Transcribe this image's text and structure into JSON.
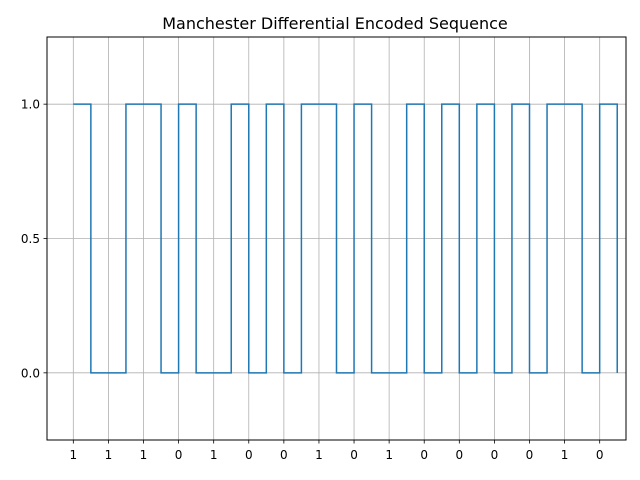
{
  "chart_data": {
    "type": "line",
    "title": "Manchester Differential Encoded Sequence",
    "xlabel": "",
    "ylabel": "",
    "bits": [
      "1",
      "1",
      "1",
      "0",
      "1",
      "0",
      "0",
      "1",
      "0",
      "1",
      "0",
      "0",
      "0",
      "0",
      "1",
      "0"
    ],
    "yticks": [
      0.0,
      0.5,
      1.0
    ],
    "ytick_labels": [
      "0.0",
      "0.5",
      "1.0"
    ],
    "ylim": [
      -0.25,
      1.25
    ],
    "xlim": [
      -0.75,
      15.75
    ],
    "grid": true,
    "series": [
      {
        "color": "#1f77b4",
        "x": [
          0,
          0.5,
          0.5,
          1,
          1,
          1.5,
          1.5,
          2,
          2,
          2.5,
          2.5,
          3,
          3,
          3.5,
          3.5,
          4,
          4,
          4.5,
          4.5,
          5,
          5,
          5.5,
          5.5,
          6,
          6,
          6.5,
          6.5,
          7,
          7,
          7.5,
          7.5,
          8,
          8,
          8.5,
          8.5,
          9,
          9,
          9.5,
          9.5,
          10,
          10,
          10.5,
          10.5,
          11,
          11,
          11.5,
          11.5,
          12,
          12,
          12.5,
          12.5,
          13,
          13,
          13.5,
          13.5,
          14,
          14,
          14.5,
          14.5,
          15,
          15,
          15.5,
          15.5
        ],
        "y": [
          1,
          1,
          0,
          0,
          0,
          0,
          1,
          1,
          1,
          1,
          0,
          0,
          1,
          1,
          0,
          0,
          0,
          0,
          1,
          1,
          0,
          0,
          1,
          1,
          0,
          0,
          1,
          1,
          1,
          1,
          0,
          0,
          1,
          1,
          0,
          0,
          0,
          0,
          1,
          1,
          0,
          0,
          1,
          1,
          0,
          0,
          1,
          1,
          0,
          0,
          1,
          1,
          0,
          0,
          1,
          1,
          1,
          1,
          0,
          0,
          1,
          1,
          0
        ]
      }
    ]
  }
}
